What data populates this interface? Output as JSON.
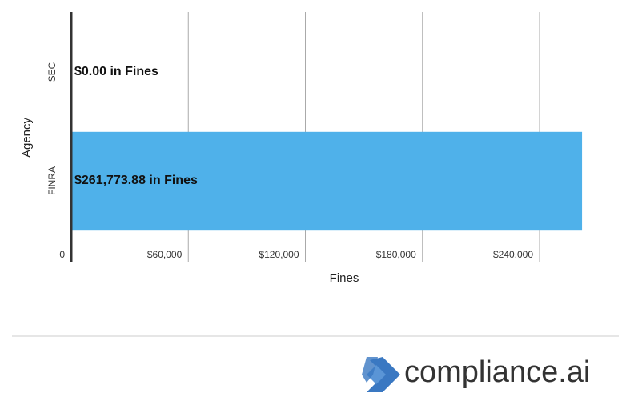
{
  "chart_data": {
    "type": "bar",
    "orientation": "horizontal",
    "x_label": "Fines",
    "y_label": "Agency",
    "categories": [
      "SEC",
      "FINRA"
    ],
    "values": [
      0,
      261773.88
    ],
    "value_labels": [
      "$0.00 in Fines",
      "$261,773.88 in Fines"
    ],
    "color": "#4fb1ea",
    "xlim": [
      0,
      280000
    ],
    "xticks": [
      0,
      {
        "value": 60000,
        "label": "$60,000"
      },
      {
        "value": 120000,
        "label": "$120,000"
      },
      {
        "value": 180000,
        "label": "$180,000"
      },
      {
        "value": 240000,
        "label": "$240,000"
      }
    ],
    "grid": true
  },
  "footer": {
    "logo": "compliance.ai"
  }
}
